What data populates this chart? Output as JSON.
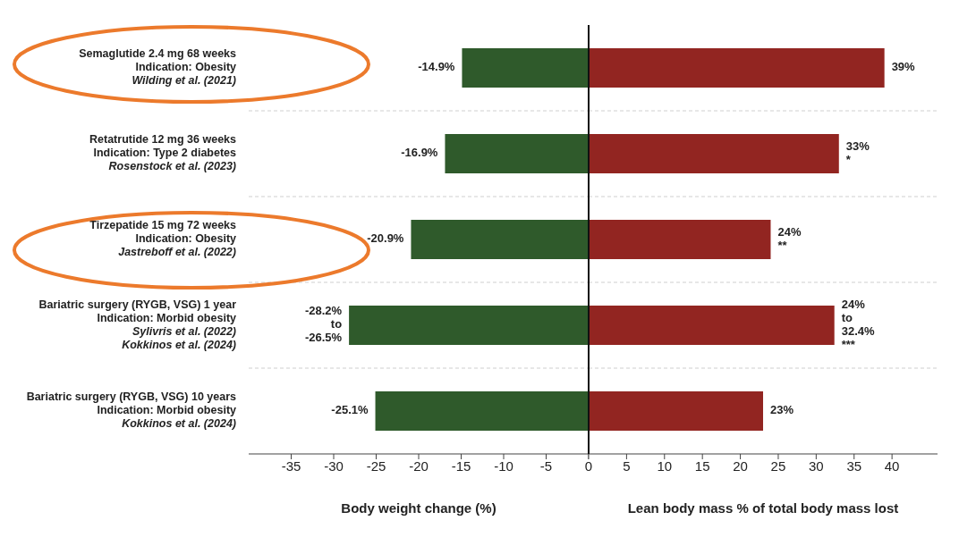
{
  "chart_data": [
    {
      "type": "bar",
      "orientation": "horizontal",
      "categories": [
        "Semaglutide 2.4 mg 68 weeks\nIndication: Obesity\nWilding et al. (2021)",
        "Retatrutide 12 mg 36 weeks\nIndication: Type 2 diabetes\nRosenstock et al. (2023)",
        "Tirzepatide 15 mg 72 weeks\nIndication: Obesity\nJastreboff et al. (2022)",
        "Bariatric surgery (RYGB, VSG) 1 year\nIndication: Morbid obesity\nSylivris et al. (2022)\nKokkinos et al. (2024)",
        "Bariatric surgery (RYGB, VSG) 10 years\nIndication: Morbid obesity\nKokkinos et al. (2024)"
      ],
      "values": [
        -14.9,
        -16.9,
        -20.9,
        -28.2,
        -25.1
      ],
      "value_labels": [
        "-14.9%",
        "-16.9%",
        "-20.9%",
        "-28.2%\nto\n-26.5%",
        "-25.1%"
      ],
      "color": "#2f5a2b",
      "xlim": [
        -40,
        0
      ],
      "xticks": [
        -35,
        -30,
        -25,
        -20,
        -15,
        -10,
        -5,
        {
          "value": 0,
          "label": null
        }
      ],
      "xlabel": "Body weight change (%)",
      "grid": "y"
    },
    {
      "type": "bar",
      "orientation": "horizontal",
      "values": [
        39,
        33,
        24,
        32.4,
        23
      ],
      "value_labels": [
        "39%",
        "33%\n*",
        "24%\n**",
        "24%\nto\n32.4%\n***",
        "23%"
      ],
      "color": "#922521",
      "xlim": [
        0,
        46
      ],
      "xticks": [
        0,
        5,
        10,
        15,
        20,
        25,
        30,
        35,
        40
      ],
      "xlabel": "Lean body mass % of total body mass lost",
      "grid": "y",
      "tick_labels": "x"
    }
  ]
}
